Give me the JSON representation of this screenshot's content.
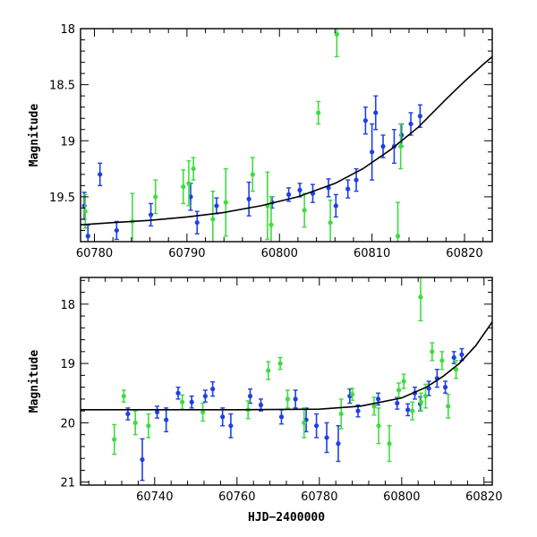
{
  "colors": {
    "blue": "#1f3fe6",
    "green": "#3fdc3f",
    "red": "#f0402a",
    "axis": "#000000",
    "curve": "#000000"
  },
  "chart_data": [
    {
      "type": "scatter",
      "title": "",
      "xlabel": "",
      "ylabel": "Magnitude",
      "xlim": [
        60778.5,
        60823
      ],
      "ylim": [
        19.9,
        18
      ],
      "y_inverted": true,
      "xticks": [
        60780,
        60790,
        60800,
        60810,
        60820
      ],
      "xtick_labels": [
        "60780",
        "60790",
        "60800",
        "60810",
        "60820"
      ],
      "yticks": [
        18,
        18.5,
        19,
        19.5
      ],
      "ytick_labels": [
        "18",
        "18.5",
        "19",
        "19.5"
      ],
      "legend": null,
      "model_curve": {
        "x": [
          60778.5,
          60782,
          60786,
          60790,
          60794,
          60798,
          60802,
          60806,
          60809,
          60812,
          60815,
          60818,
          60820,
          60822,
          60823
        ],
        "y": [
          19.75,
          19.73,
          19.71,
          19.68,
          19.64,
          19.58,
          19.5,
          19.38,
          19.25,
          19.08,
          18.88,
          18.63,
          18.47,
          18.32,
          18.25
        ]
      },
      "series": [
        {
          "color": "blue",
          "points": [
            [
              60778.9,
              19.58,
              0.12
            ],
            [
              60779.3,
              19.85,
              0.1
            ],
            [
              60780.6,
              19.3,
              0.1
            ],
            [
              60782.4,
              19.8,
              0.08
            ],
            [
              60786.1,
              19.66,
              0.1
            ],
            [
              60790.4,
              19.5,
              0.12
            ],
            [
              60791.1,
              19.73,
              0.1
            ],
            [
              60793.2,
              19.58,
              0.07
            ],
            [
              60796.7,
              19.52,
              0.15
            ],
            [
              60799.2,
              19.55,
              0.05
            ],
            [
              60801.0,
              19.48,
              0.06
            ],
            [
              60802.2,
              19.44,
              0.06
            ],
            [
              60803.6,
              19.47,
              0.08
            ],
            [
              60805.3,
              19.42,
              0.08
            ],
            [
              60806.1,
              19.58,
              0.1
            ],
            [
              60807.4,
              19.43,
              0.08
            ],
            [
              60808.3,
              19.35,
              0.1
            ],
            [
              60809.3,
              18.82,
              0.12
            ],
            [
              60810.0,
              19.1,
              0.25
            ],
            [
              60810.4,
              18.75,
              0.15
            ],
            [
              60811.2,
              19.05,
              0.1
            ],
            [
              60812.4,
              19.05,
              0.15
            ],
            [
              60813.2,
              18.95,
              0.1
            ],
            [
              60814.2,
              18.85,
              0.1
            ],
            [
              60815.2,
              18.78,
              0.1
            ]
          ]
        },
        {
          "color": "green",
          "points": [
            [
              60779.0,
              19.63,
              0.15
            ],
            [
              60784.1,
              19.72,
              0.25
            ],
            [
              60786.6,
              19.5,
              0.15
            ],
            [
              60789.6,
              19.41,
              0.15
            ],
            [
              60790.2,
              19.38,
              0.2
            ],
            [
              60790.7,
              19.25,
              0.1
            ],
            [
              60792.8,
              19.7,
              0.25
            ],
            [
              60794.2,
              19.55,
              0.3
            ],
            [
              60797.1,
              19.3,
              0.15
            ],
            [
              60798.7,
              19.58,
              0.3
            ],
            [
              60799.1,
              19.75,
              0.25
            ],
            [
              60802.7,
              19.62,
              0.15
            ],
            [
              60804.2,
              18.75,
              0.1
            ],
            [
              60805.5,
              19.73,
              0.2
            ],
            [
              60806.2,
              18.05,
              0.2
            ],
            [
              60812.8,
              19.85,
              0.3
            ],
            [
              60813.1,
              19.05,
              0.2
            ]
          ]
        }
      ]
    },
    {
      "type": "scatter",
      "title": "",
      "xlabel": "HJD−2400000",
      "ylabel": "Magnitude",
      "xlim": [
        60722,
        60822
      ],
      "ylim": [
        21.05,
        17.55
      ],
      "y_inverted": true,
      "xticks": [
        60740,
        60760,
        60780,
        60800,
        60820
      ],
      "xtick_labels": [
        "60740",
        "60760",
        "60780",
        "60800",
        "60820"
      ],
      "yticks": [
        18,
        19,
        20,
        21
      ],
      "ytick_labels": [
        "18",
        "19",
        "20",
        "21"
      ],
      "legend": null,
      "model_curve": {
        "x": [
          60722,
          60740,
          60760,
          60780,
          60790,
          60800,
          60806,
          60810,
          60814,
          60818,
          60822
        ],
        "y": [
          19.78,
          19.78,
          19.78,
          19.77,
          19.72,
          19.58,
          19.4,
          19.22,
          19.0,
          18.7,
          18.3
        ]
      },
      "series": [
        {
          "color": "blue",
          "points": [
            [
              60733.5,
              19.85,
              0.1
            ],
            [
              60737.0,
              20.62,
              0.35
            ],
            [
              60740.6,
              19.82,
              0.1
            ],
            [
              60742.8,
              19.95,
              0.2
            ],
            [
              60745.7,
              19.5,
              0.1
            ],
            [
              60749.0,
              19.65,
              0.1
            ],
            [
              60752.3,
              19.55,
              0.1
            ],
            [
              60754.1,
              19.43,
              0.12
            ],
            [
              60756.5,
              19.9,
              0.15
            ],
            [
              60758.5,
              20.05,
              0.2
            ],
            [
              60763.2,
              19.55,
              0.12
            ],
            [
              60765.8,
              19.7,
              0.1
            ],
            [
              60770.8,
              19.9,
              0.12
            ],
            [
              60774.2,
              19.6,
              0.15
            ],
            [
              60776.8,
              19.95,
              0.2
            ],
            [
              60779.3,
              20.05,
              0.2
            ],
            [
              60781.8,
              20.25,
              0.25
            ],
            [
              60784.6,
              20.35,
              0.3
            ],
            [
              60787.4,
              19.55,
              0.12
            ],
            [
              60789.4,
              19.8,
              0.1
            ],
            [
              60794.3,
              19.6,
              0.1
            ],
            [
              60798.9,
              19.67,
              0.1
            ],
            [
              60801.5,
              19.78,
              0.1
            ],
            [
              60803.2,
              19.5,
              0.1
            ],
            [
              60804.5,
              19.68,
              0.12
            ],
            [
              60806.6,
              19.42,
              0.12
            ],
            [
              60808.6,
              19.25,
              0.15
            ],
            [
              60810.6,
              19.4,
              0.1
            ],
            [
              60812.7,
              18.9,
              0.1
            ],
            [
              60814.6,
              18.85,
              0.1
            ]
          ]
        },
        {
          "color": "green",
          "points": [
            [
              60730.2,
              20.28,
              0.25
            ],
            [
              60732.5,
              19.55,
              0.1
            ],
            [
              60735.3,
              20.0,
              0.2
            ],
            [
              60738.5,
              20.05,
              0.2
            ],
            [
              60746.7,
              19.65,
              0.12
            ],
            [
              60751.7,
              19.82,
              0.15
            ],
            [
              60762.7,
              19.78,
              0.15
            ],
            [
              60767.6,
              19.12,
              0.15
            ],
            [
              60770.5,
              19.0,
              0.1
            ],
            [
              60772.3,
              19.6,
              0.15
            ],
            [
              60776.3,
              20.0,
              0.25
            ],
            [
              60785.3,
              19.85,
              0.25
            ],
            [
              60788.0,
              19.52,
              0.1
            ],
            [
              60793.3,
              19.72,
              0.15
            ],
            [
              60797.0,
              20.35,
              0.3
            ],
            [
              60799.3,
              19.45,
              0.12
            ],
            [
              60800.5,
              19.3,
              0.12
            ],
            [
              60802.6,
              19.8,
              0.15
            ],
            [
              60804.7,
              19.65,
              0.15
            ],
            [
              60805.8,
              19.55,
              0.2
            ],
            [
              60807.4,
              18.8,
              0.15
            ],
            [
              60809.8,
              18.95,
              0.15
            ],
            [
              60811.3,
              19.72,
              0.2
            ],
            [
              60813.2,
              19.1,
              0.15
            ],
            [
              60804.6,
              17.88,
              0.4
            ],
            [
              60794.4,
              20.05,
              0.3
            ]
          ]
        }
      ]
    }
  ]
}
